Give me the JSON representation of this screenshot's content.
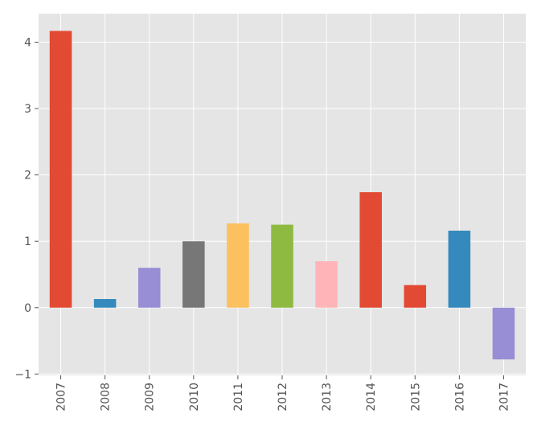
{
  "chart_data": {
    "type": "bar",
    "title": "",
    "xlabel": "",
    "ylabel": "",
    "categories": [
      "2007",
      "2008",
      "2009",
      "2010",
      "2011",
      "2012",
      "2013",
      "2014",
      "2015",
      "2016",
      "2017"
    ],
    "values": [
      4.17,
      0.13,
      0.6,
      1.0,
      1.27,
      1.25,
      0.7,
      1.74,
      0.34,
      1.16,
      -0.78
    ],
    "bar_colors": [
      "#E24A33",
      "#348ABD",
      "#988ED5",
      "#777777",
      "#FBC15E",
      "#8EBA42",
      "#FFB5B8",
      "#E24A33",
      "#E24A33",
      "#348ABD",
      "#988ED5"
    ],
    "ylim": [
      -1.02,
      4.43
    ],
    "yticks": [
      -1,
      0,
      1,
      2,
      3,
      4
    ],
    "ytick_labels": [
      "−1",
      "0",
      "1",
      "2",
      "3",
      "4"
    ],
    "grid": true,
    "background_color": "#E5E5E5",
    "grid_color": "#FFFFFF",
    "tick_label_color": "#555555",
    "legend": "none"
  }
}
